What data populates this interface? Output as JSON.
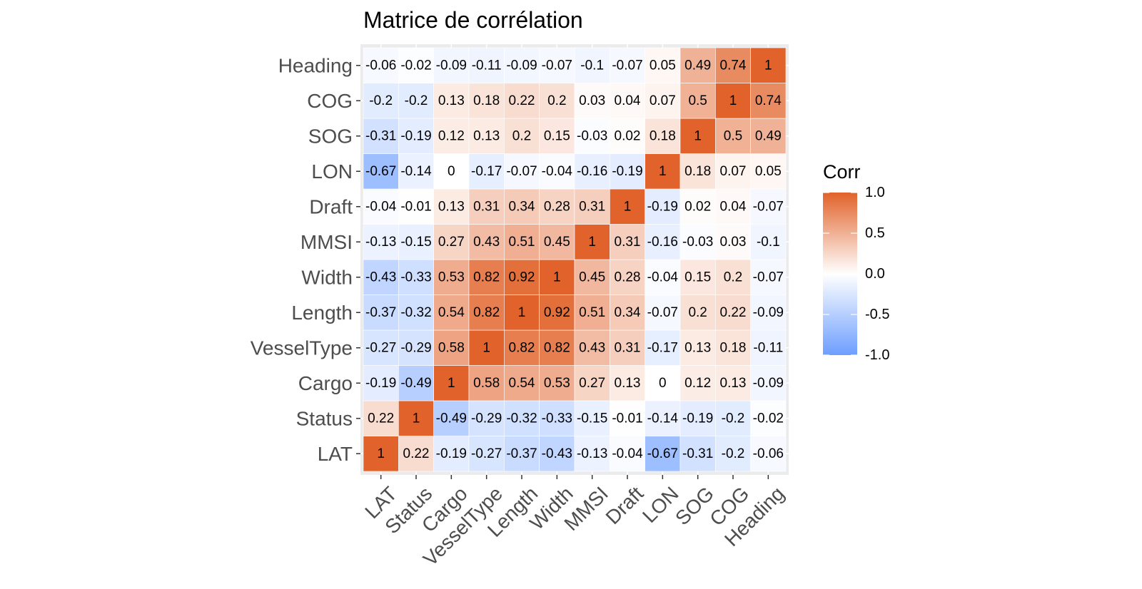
{
  "chart_data": {
    "type": "heatmap",
    "title": "Matrice de corrélation",
    "variables": [
      "LAT",
      "Status",
      "Cargo",
      "VesselType",
      "Length",
      "Width",
      "MMSI",
      "Draft",
      "LON",
      "SOG",
      "COG",
      "Heading"
    ],
    "matrix": [
      [
        1,
        0.22,
        -0.19,
        -0.27,
        -0.37,
        -0.43,
        -0.13,
        -0.04,
        -0.67,
        -0.31,
        -0.2,
        -0.06
      ],
      [
        0.22,
        1,
        -0.49,
        -0.29,
        -0.32,
        -0.33,
        -0.15,
        -0.01,
        -0.14,
        -0.19,
        -0.2,
        -0.02
      ],
      [
        -0.19,
        -0.49,
        1,
        0.58,
        0.54,
        0.53,
        0.27,
        0.13,
        0,
        0.12,
        0.13,
        -0.09
      ],
      [
        -0.27,
        -0.29,
        0.58,
        1,
        0.82,
        0.82,
        0.43,
        0.31,
        -0.17,
        0.13,
        0.18,
        -0.11
      ],
      [
        -0.37,
        -0.32,
        0.54,
        0.82,
        1,
        0.92,
        0.51,
        0.34,
        -0.07,
        0.2,
        0.22,
        -0.09
      ],
      [
        -0.43,
        -0.33,
        0.53,
        0.82,
        0.92,
        1,
        0.45,
        0.28,
        -0.04,
        0.15,
        0.2,
        -0.07
      ],
      [
        -0.13,
        -0.15,
        0.27,
        0.43,
        0.51,
        0.45,
        1,
        0.31,
        -0.16,
        -0.03,
        0.03,
        -0.1
      ],
      [
        -0.04,
        -0.01,
        0.13,
        0.31,
        0.34,
        0.28,
        0.31,
        1,
        -0.19,
        0.02,
        0.04,
        -0.07
      ],
      [
        -0.67,
        -0.14,
        0,
        -0.17,
        -0.07,
        -0.04,
        -0.16,
        -0.19,
        1,
        0.18,
        0.07,
        0.05
      ],
      [
        -0.31,
        -0.19,
        0.12,
        0.13,
        0.2,
        0.15,
        -0.03,
        0.02,
        0.18,
        1,
        0.5,
        0.49
      ],
      [
        -0.2,
        -0.2,
        0.13,
        0.18,
        0.22,
        0.2,
        0.03,
        0.04,
        0.07,
        0.5,
        1,
        0.74
      ],
      [
        -0.06,
        -0.02,
        -0.09,
        -0.11,
        -0.09,
        -0.07,
        -0.1,
        -0.07,
        0.05,
        0.49,
        0.74,
        1
      ]
    ],
    "color_scale": {
      "title": "Corr",
      "min": -1,
      "max": 1,
      "low_color": "#6d9eff",
      "mid_color": "#ffffff",
      "high_color": "#e1622a",
      "ticks": [
        "1.0",
        "0.5",
        "0.0",
        "-0.5",
        "-1.0"
      ],
      "tick_values": [
        1,
        0.5,
        0,
        -0.5,
        -1
      ]
    },
    "legend_position": "right",
    "panel_background": "#ebebeb",
    "grid": true
  }
}
